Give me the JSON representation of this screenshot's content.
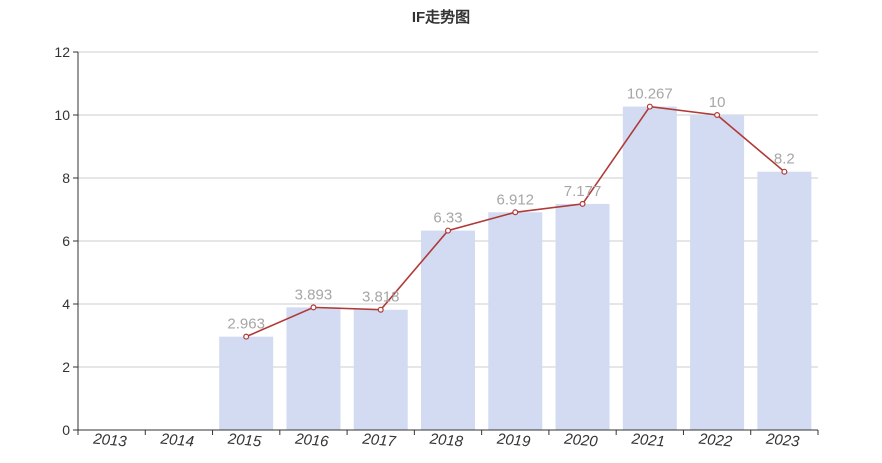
{
  "chart_data": {
    "type": "bar+line",
    "title": "IF走势图",
    "categories": [
      "2013",
      "2014",
      "2015",
      "2016",
      "2017",
      "2018",
      "2019",
      "2020",
      "2021",
      "2022",
      "2023"
    ],
    "values": [
      null,
      null,
      2.963,
      3.893,
      3.818,
      6.33,
      6.912,
      7.177,
      10.267,
      10,
      8.2
    ],
    "value_labels": [
      "",
      "",
      "2.963",
      "3.893",
      "3.818",
      "6.33",
      "6.912",
      "7.177",
      "10.267",
      "10",
      "8.2"
    ],
    "ylim": [
      0,
      12
    ],
    "yticks": [
      "0",
      "2",
      "4",
      "6",
      "8",
      "10",
      "12"
    ],
    "ytick_values": [
      0,
      2,
      4,
      6,
      8,
      10,
      12
    ],
    "grid": true,
    "legend": "none",
    "colors": {
      "bar": "#d2dbf1",
      "line": "#b03a38",
      "label": "#a6a6a6",
      "axis": "#333333",
      "grid": "#cccccc"
    }
  }
}
